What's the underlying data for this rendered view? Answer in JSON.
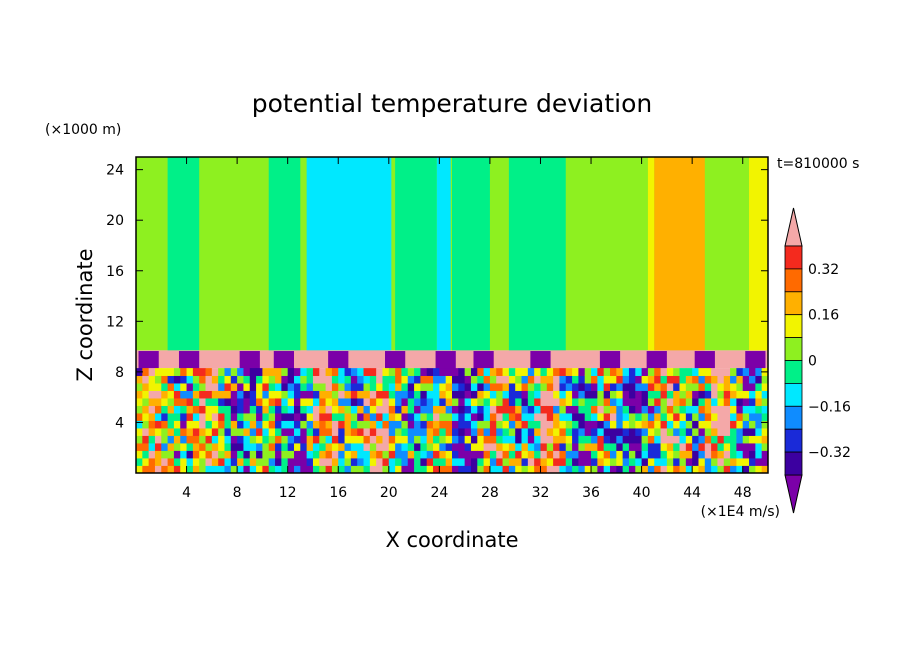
{
  "chart_data": {
    "type": "heatmap",
    "title": "potential temperature deviation",
    "xlabel": "X coordinate",
    "ylabel": "Z coordinate",
    "x_unit": "(×1E4 m/s)",
    "y_unit": "(×1000 m)",
    "time_label": "t=810000 s",
    "xlim": [
      0,
      50
    ],
    "ylim": [
      0,
      25
    ],
    "x_ticks": [
      4,
      8,
      12,
      16,
      20,
      24,
      28,
      32,
      36,
      40,
      44,
      48
    ],
    "y_ticks": [
      4,
      8,
      12,
      16,
      20,
      24
    ],
    "colorbar": {
      "levels": [
        -0.48,
        -0.4,
        -0.32,
        -0.24,
        -0.16,
        -0.08,
        0,
        0.08,
        0.16,
        0.24,
        0.32,
        0.4
      ],
      "tick_labels": [
        "0.32",
        "0.16",
        "0",
        "−0.16",
        "−0.32"
      ],
      "tick_values": [
        0.32,
        0.16,
        0,
        -0.16,
        -0.32
      ],
      "colors": [
        "#7b00a8",
        "#3c00a0",
        "#1a2ad8",
        "#0f8cff",
        "#00e8ff",
        "#00f088",
        "#8ef020",
        "#f2f400",
        "#ffb000",
        "#ff6a00",
        "#f42a1e",
        "#f4a8a8"
      ]
    },
    "bands": [
      {
        "z_range": [
          9.7,
          25
        ],
        "description_value": "upper layer mostly 0 to 0.08, with -0.08 region near x 13-20 and 0.16-0.24 near x 41-45"
      },
      {
        "z_range": [
          8.3,
          9.7
        ],
        "value": 0.48
      },
      {
        "z_range": [
          0,
          8.3
        ],
        "value_range": [
          -0.48,
          0.48
        ]
      }
    ],
    "upper_regions": [
      {
        "x": [
          0,
          50
        ],
        "value": 0.04
      },
      {
        "x": [
          2.5,
          5.0
        ],
        "value": -0.04
      },
      {
        "x": [
          10.5,
          13.0
        ],
        "value": -0.04
      },
      {
        "x": [
          13.5,
          20.2
        ],
        "value": -0.12
      },
      {
        "x": [
          20.5,
          23.8
        ],
        "value": -0.04
      },
      {
        "x": [
          23.8,
          24.9
        ],
        "value": -0.12
      },
      {
        "x": [
          25.0,
          28.0
        ],
        "value": -0.04
      },
      {
        "x": [
          29.5,
          34.0
        ],
        "value": -0.04
      },
      {
        "x": [
          40.5,
          41.0
        ],
        "value": 0.12
      },
      {
        "x": [
          41.0,
          45.0
        ],
        "value": 0.2
      },
      {
        "x": [
          48.5,
          50.0
        ],
        "value": 0.12
      }
    ]
  }
}
